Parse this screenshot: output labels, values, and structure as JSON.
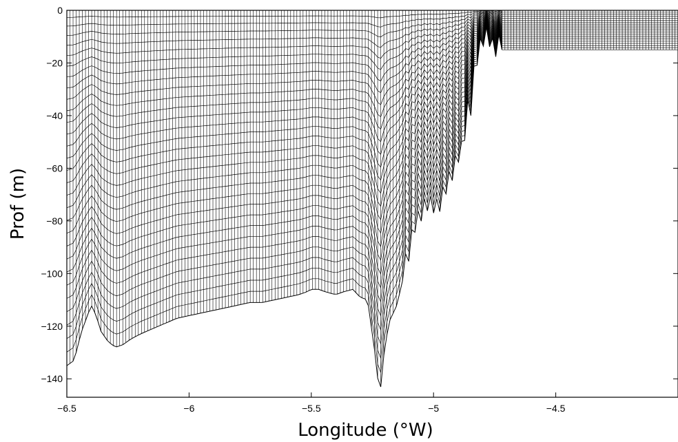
{
  "chart_data": {
    "type": "line",
    "title": "",
    "xlabel": "Longitude (°W)",
    "ylabel": "Prof (m)",
    "xlim": [
      -6.5,
      -4.0
    ],
    "ylim": [
      -147,
      0
    ],
    "grid": false,
    "legend": "none",
    "description_series": "Sigma-coordinate vertical model grid: 30 levels following the seabed depth profile",
    "x_ticks": [
      -6.5,
      -6,
      -5.5,
      -5,
      -4.5
    ],
    "x_tick_labels": [
      "−6.5",
      "−6",
      "−5.5",
      "−5",
      "−4.5"
    ],
    "y_ticks": [
      0,
      -20,
      -40,
      -60,
      -80,
      -100,
      -120,
      -140
    ],
    "y_tick_labels": [
      "0",
      "−20",
      "−40",
      "−60",
      "−80",
      "−100",
      "−120",
      "−140"
    ],
    "levels": 30,
    "bathymetry": {
      "x": [
        -6.5,
        -6.47,
        -6.44,
        -6.42,
        -6.4,
        -6.38,
        -6.36,
        -6.33,
        -6.3,
        -6.27,
        -6.24,
        -6.2,
        -6.15,
        -6.1,
        -6.05,
        -6.0,
        -5.95,
        -5.9,
        -5.85,
        -5.8,
        -5.75,
        -5.7,
        -5.65,
        -5.6,
        -5.55,
        -5.52,
        -5.5,
        -5.47,
        -5.44,
        -5.4,
        -5.37,
        -5.33,
        -5.3,
        -5.27,
        -5.255,
        -5.24,
        -5.22,
        -5.2,
        -5.18,
        -5.15,
        -5.12,
        -5.1,
        -5.08,
        -5.05,
        -5.03,
        -5.0,
        -4.98,
        -4.95,
        -4.92,
        -4.9,
        -4.88,
        -4.86,
        -4.85,
        -4.84,
        -4.83,
        -4.82,
        -4.8,
        -4.78,
        -4.76,
        -4.75,
        -4.74,
        -4.73,
        -4.72
      ],
      "depth": [
        -135,
        -133,
        -122,
        -117,
        -112,
        -116,
        -122,
        -126,
        -128,
        -127,
        -125,
        -123,
        -121,
        -119,
        -117,
        -116,
        -115,
        -114,
        -113,
        -112,
        -111,
        -111,
        -110,
        -109,
        -108,
        -107,
        -106,
        -106,
        -107,
        -108,
        -107,
        -106,
        -109,
        -110,
        -120,
        -130,
        -147,
        -128,
        -118,
        -112,
        -100,
        -95,
        -85,
        -80,
        -76,
        -77,
        -78,
        -70,
        -64,
        -58,
        -55,
        -40,
        -44,
        -30,
        -25,
        -20,
        -14,
        -12,
        -16,
        -19,
        -16,
        -15,
        -15
      ]
    },
    "shelf": {
      "x_start": -4.72,
      "x_end": -4.0,
      "depth": -15
    }
  }
}
